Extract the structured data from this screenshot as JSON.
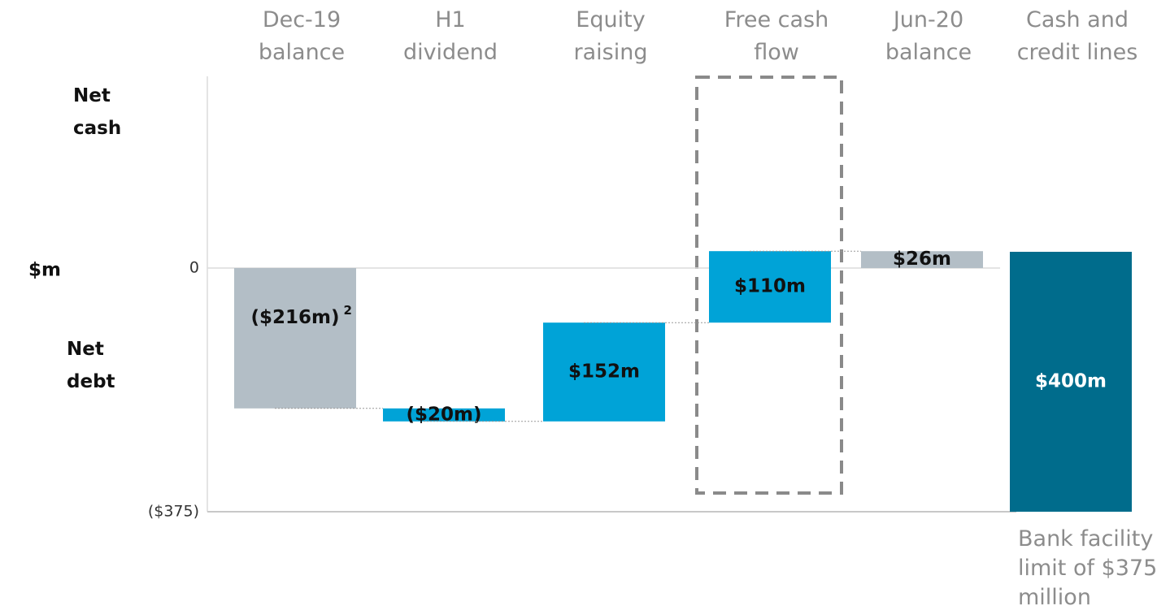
{
  "chart_data": {
    "type": "waterfall",
    "categories": [
      "Dec-19\nbalance",
      "H1\ndividend",
      "Equity\nraising",
      "Free cash\nflow",
      "Jun-20\nbalance",
      "Cash and\ncredit lines"
    ],
    "values": [
      -216,
      -20,
      152,
      110,
      26,
      400
    ],
    "value_labels": [
      "($216m)",
      "($20m)",
      "$152m",
      "$110m",
      "$26m",
      "$400m"
    ],
    "measure": [
      "absolute",
      "relative",
      "relative",
      "relative",
      "total",
      "floor"
    ],
    "colors": [
      "#b3bec6",
      "#00a3d7",
      "#00a3d7",
      "#00a3d7",
      "#b3bec6",
      "#006c8c"
    ],
    "ylim": [
      -375,
      295
    ],
    "yticks": [
      0,
      {
        "value": -375,
        "label": "($375)"
      }
    ],
    "y_axis_label": "$m",
    "upper_label": "Net\ncash",
    "lower_label": "Net\ndebt",
    "footnote_marker": "2",
    "annotation": "Bank facility\nlimit of $375\nmillion"
  }
}
